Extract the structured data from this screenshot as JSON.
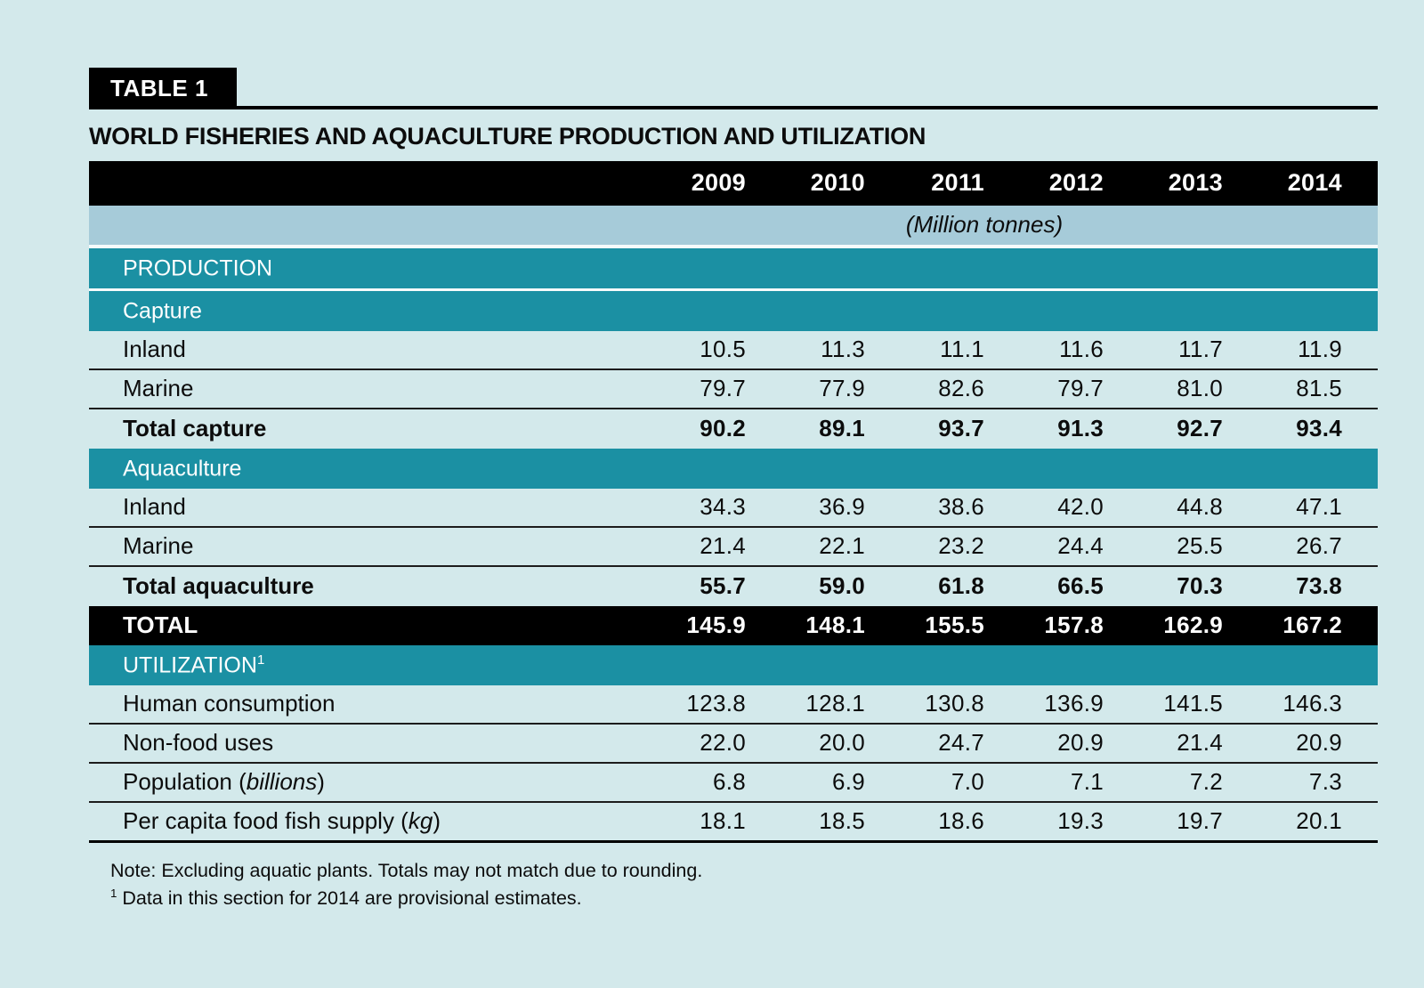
{
  "table_tag": "TABLE 1",
  "title": "WORLD FISHERIES AND AQUACULTURE PRODUCTION AND UTILIZATION",
  "years": [
    "2009",
    "2010",
    "2011",
    "2012",
    "2013",
    "2014"
  ],
  "unit_label": "(Million tonnes)",
  "colors": {
    "bg": "#d3e9eb",
    "teal": "#1b90a3",
    "band": "#a6cbd9",
    "ink": "#0c0c0c",
    "rule": "#1c1c1c"
  },
  "rows": [
    {
      "kind": "section",
      "pre": "PRODUCTION",
      "it": "",
      "post": "",
      "sup": ""
    },
    {
      "kind": "section",
      "pre": "Capture",
      "it": "",
      "post": "",
      "sup": ""
    },
    {
      "kind": "data",
      "pre": "Inland",
      "it": "",
      "post": "",
      "values": [
        "10.5",
        "11.3",
        "11.1",
        "11.6",
        "11.7",
        "11.9"
      ]
    },
    {
      "kind": "data",
      "pre": "Marine",
      "it": "",
      "post": "",
      "values": [
        "79.7",
        "77.9",
        "82.6",
        "79.7",
        "81.0",
        "81.5"
      ]
    },
    {
      "kind": "total",
      "pre": "Total capture",
      "it": "",
      "post": "",
      "values": [
        "90.2",
        "89.1",
        "93.7",
        "91.3",
        "92.7",
        "93.4"
      ]
    },
    {
      "kind": "section",
      "pre": "Aquaculture",
      "it": "",
      "post": "",
      "sup": ""
    },
    {
      "kind": "data",
      "pre": "Inland",
      "it": "",
      "post": "",
      "values": [
        "34.3",
        "36.9",
        "38.6",
        "42.0",
        "44.8",
        "47.1"
      ]
    },
    {
      "kind": "data",
      "pre": "Marine",
      "it": "",
      "post": "",
      "values": [
        "21.4",
        "22.1",
        "23.2",
        "24.4",
        "25.5",
        "26.7"
      ]
    },
    {
      "kind": "total",
      "pre": "Total aquaculture",
      "it": "",
      "post": "",
      "values": [
        "55.7",
        "59.0",
        "61.8",
        "66.5",
        "70.3",
        "73.8"
      ]
    },
    {
      "kind": "grand",
      "pre": "TOTAL",
      "it": "",
      "post": "",
      "values": [
        "145.9",
        "148.1",
        "155.5",
        "157.8",
        "162.9",
        "167.2"
      ]
    },
    {
      "kind": "section",
      "pre": "UTILIZATION",
      "it": "",
      "post": "",
      "sup": "1"
    },
    {
      "kind": "data",
      "pre": "Human consumption",
      "it": "",
      "post": "",
      "values": [
        "123.8",
        "128.1",
        "130.8",
        "136.9",
        "141.5",
        "146.3"
      ]
    },
    {
      "kind": "data",
      "pre": "Non-food uses",
      "it": "",
      "post": "",
      "values": [
        "22.0",
        "20.0",
        "24.7",
        "20.9",
        "21.4",
        "20.9"
      ]
    },
    {
      "kind": "data",
      "pre": "Population (",
      "it": "billions",
      "post": ")",
      "values": [
        "6.8",
        "6.9",
        "7.0",
        "7.1",
        "7.2",
        "7.3"
      ]
    },
    {
      "kind": "data",
      "pre": "Per capita food fish supply (",
      "it": "kg",
      "post": ")",
      "values": [
        "18.1",
        "18.5",
        "18.6",
        "19.3",
        "19.7",
        "20.1"
      ]
    }
  ],
  "notes": {
    "note1": "Note: Excluding aquatic plants. Totals may not match due to rounding.",
    "fn_sup": "1",
    "fn_text": " Data in this section for 2014 are provisional estimates."
  }
}
